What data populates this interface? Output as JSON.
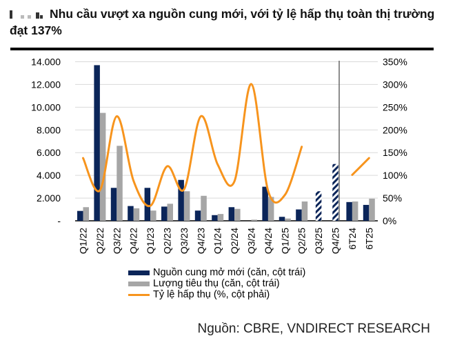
{
  "title": "Nhu cầu vượt xa nguồn cung mới, với tỷ lệ hấp thụ toàn thị trường đạt 137%",
  "source": "Nguồn: CBRE, VNDIRECT RESEARCH",
  "colors": {
    "supply": "#0b2559",
    "absorbed": "#a6a6a6",
    "rate": "#f7941d",
    "grid": "#d9d9d9"
  },
  "chart_data": {
    "type": "bar",
    "title": "Nhu cầu vượt xa nguồn cung mới, với tỷ lệ hấp thụ toàn thị trường đạt 137%",
    "categories": [
      "Q1/22",
      "Q2/22",
      "Q3/22",
      "Q4/22",
      "Q1/23",
      "Q2/23",
      "Q3/23",
      "Q4/23",
      "Q1/24",
      "Q2/24",
      "Q3/24",
      "Q4/24",
      "Q1/25",
      "Q2/25",
      "Q3/25",
      "Q4/25",
      "6T24",
      "6T25"
    ],
    "left_axis": {
      "ylim": [
        0,
        14000
      ],
      "ticks": [
        "-",
        "2.000",
        "4.000",
        "6.000",
        "8.000",
        "10.000",
        "12.000",
        "14.000"
      ]
    },
    "right_axis": {
      "ylim": [
        0,
        350
      ],
      "ticks": [
        "0%",
        "50%",
        "100%",
        "150%",
        "200%",
        "250%",
        "300%",
        "350%"
      ]
    },
    "series": [
      {
        "name": "Nguồn cung mở mới (căn, cột trái)",
        "type": "bar",
        "axis": "left",
        "values": [
          870,
          13700,
          2900,
          1300,
          2900,
          1250,
          3600,
          900,
          500,
          1200,
          0,
          3000,
          350,
          1000,
          2600,
          5000,
          1650,
          1400
        ],
        "forecast": [
          false,
          false,
          false,
          false,
          false,
          false,
          false,
          false,
          false,
          false,
          false,
          false,
          false,
          false,
          true,
          true,
          false,
          false
        ]
      },
      {
        "name": "Lượng tiêu thụ (căn, cột trái)",
        "type": "bar",
        "axis": "left",
        "values": [
          1200,
          9500,
          6600,
          1100,
          900,
          1500,
          2600,
          2200,
          600,
          1050,
          100,
          2100,
          200,
          1700,
          null,
          null,
          1700,
          1950
        ]
      },
      {
        "name": "Tỷ lệ hấp thụ (%, cột phải)",
        "type": "line",
        "axis": "right",
        "values": [
          138,
          67,
          230,
          88,
          33,
          120,
          69,
          230,
          124,
          87,
          301,
          66,
          57,
          163,
          null,
          null,
          101,
          138
        ]
      }
    ],
    "grid": true,
    "legend_position": "bottom"
  }
}
